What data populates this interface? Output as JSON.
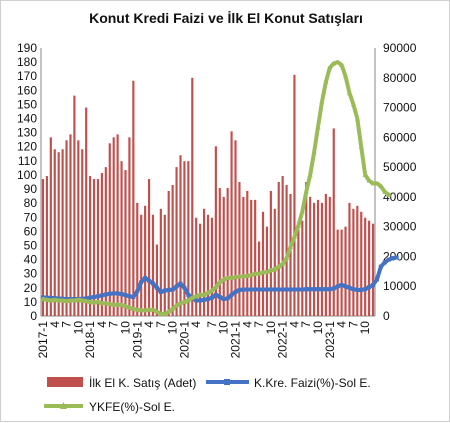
{
  "chart_data": {
    "type": "bar",
    "title": "Konut Kredi Faizi ve İlk El Konut Satışları",
    "left_axis": {
      "min": 0,
      "max": 190,
      "step": 10
    },
    "right_axis": {
      "min": 0,
      "max": 90000,
      "step": 10000
    },
    "x_tick_labels": [
      "2017-1",
      "4",
      "7",
      "10",
      "2018-1",
      "4",
      "7",
      "10",
      "2019-1",
      "4",
      "7",
      "10",
      "2020-1",
      "4",
      "7",
      "10",
      "2021-1",
      "4",
      "7",
      "10",
      "2022-1",
      "4",
      "7",
      "10",
      "2023-1",
      "4",
      "7",
      "10"
    ],
    "series": [
      {
        "name": "İlk El K. Satış (Adet)",
        "type": "bar",
        "axis": "right",
        "color": "#c0504d",
        "values": [
          46000,
          47000,
          60000,
          56000,
          55000,
          56000,
          59000,
          61000,
          74000,
          59000,
          56000,
          70000,
          47000,
          46000,
          46000,
          48000,
          50000,
          58000,
          60000,
          61000,
          52000,
          49000,
          60000,
          79000,
          38000,
          34000,
          37000,
          46000,
          34000,
          24000,
          36000,
          34000,
          42000,
          44000,
          50000,
          54000,
          52000,
          52000,
          80000,
          33000,
          31000,
          36000,
          34000,
          33000,
          57000,
          43000,
          40000,
          43000,
          62000,
          59000,
          45000,
          40000,
          42000,
          39000,
          39000,
          25000,
          35000,
          30000,
          42000,
          36000,
          45000,
          47000,
          44000,
          41000,
          81000,
          30000,
          32000,
          45000,
          40000,
          38000,
          39000,
          38000,
          41000,
          40000,
          63000,
          29000,
          29000,
          30000,
          38000,
          36000,
          37000,
          35000,
          33000,
          32000,
          31000
        ]
      },
      {
        "name": "K.Kre. Faizi(%)-Sol E.",
        "type": "line",
        "axis": "left",
        "color": "#4472c4",
        "values": [
          13.2,
          13.0,
          12.8,
          12.6,
          12.4,
          12.2,
          12.0,
          12.0,
          12.0,
          12.0,
          12.2,
          12.4,
          13.0,
          13.5,
          14.0,
          14.6,
          15.3,
          15.8,
          16.0,
          16.0,
          15.5,
          14.8,
          14.0,
          13.5,
          17.5,
          24.0,
          27.0,
          25.0,
          23.0,
          20.0,
          17.0,
          18.0,
          18.5,
          18.7,
          21.0,
          23.0,
          20.0,
          15.0,
          13.0,
          11.0,
          11.0,
          11.5,
          12.0,
          13.0,
          15.0,
          13.5,
          12.0,
          12.5,
          15.0,
          17.0,
          18.5,
          18.7,
          18.8,
          18.8,
          18.8,
          18.8,
          18.8,
          18.8,
          18.8,
          18.8,
          18.8,
          18.8,
          18.8,
          18.8,
          18.8,
          18.8,
          18.8,
          19.0,
          19.0,
          19.0,
          19.0,
          19.0,
          19.0,
          19.0,
          19.5,
          21.0,
          22.0,
          21.0,
          20.0,
          19.0,
          18.5,
          18.5,
          19.0,
          20.5,
          22.0,
          26.0,
          35.0,
          38.0,
          40.0,
          41.0,
          41.5
        ]
      },
      {
        "name": "YKFE(%)-Sol E.",
        "type": "line",
        "axis": "left",
        "color": "#9bbb59",
        "values": [
          12.0,
          11.5,
          11.0,
          11.5,
          11.0,
          11.0,
          10.5,
          11.0,
          11.0,
          11.5,
          11.0,
          10.5,
          10.0,
          9.5,
          10.0,
          9.0,
          9.0,
          8.5,
          8.0,
          8.0,
          8.0,
          7.0,
          6.0,
          5.0,
          4.5,
          4.0,
          4.0,
          4.5,
          4.5,
          3.0,
          1.5,
          1.5,
          3.0,
          5.0,
          7.5,
          9.0,
          10.0,
          11.0,
          13.0,
          14.0,
          15.0,
          15.0,
          16.5,
          18.0,
          20.5,
          24.0,
          26.0,
          27.0,
          27.0,
          27.5,
          28.0,
          28.0,
          28.5,
          29.0,
          30.0,
          30.0,
          31.0,
          31.0,
          32.5,
          33.0,
          35.0,
          37.0,
          41.0,
          49.0,
          56.0,
          64.0,
          74.0,
          88.0,
          100.0,
          116.0,
          134.0,
          152.0,
          166.0,
          176.0,
          179.0,
          180.0,
          178.0,
          170.0,
          158.0,
          150.0,
          140.0,
          120.0,
          100.0,
          96.0,
          94.0,
          94.0,
          92.0,
          88.0,
          86.0
        ]
      }
    ],
    "legend_position": "bottom",
    "gridlines": false
  }
}
